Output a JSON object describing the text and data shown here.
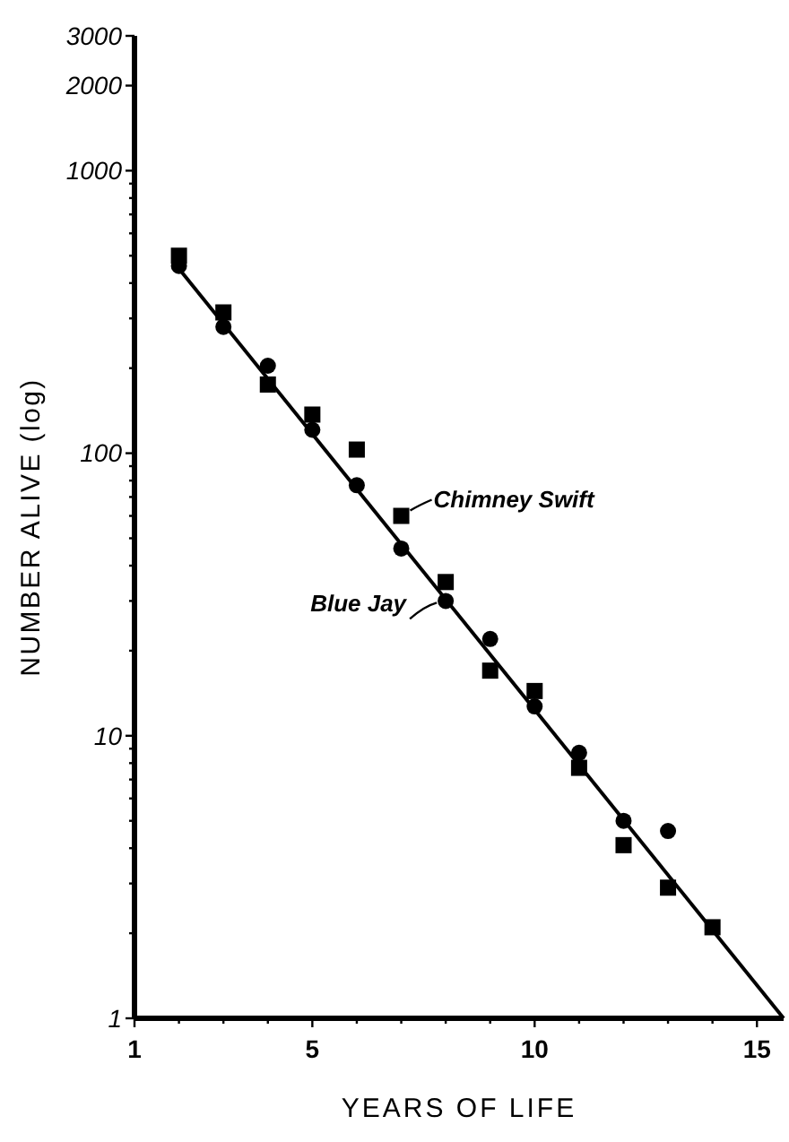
{
  "chart_data": {
    "type": "scatter",
    "xlabel": "YEARS OF LIFE",
    "ylabel": "NUMBER ALIVE (log)",
    "log": "y",
    "x": [
      2,
      3,
      4,
      5,
      6,
      7,
      8,
      9,
      10,
      11,
      12,
      13,
      14
    ],
    "xlim": [
      1,
      15.6
    ],
    "xticks": [
      1,
      {
        "value": 2,
        "label": null
      },
      {
        "value": 3,
        "label": null
      },
      {
        "value": 4,
        "label": null
      },
      5,
      {
        "value": 6,
        "label": null
      },
      {
        "value": 7,
        "label": null
      },
      {
        "value": 8,
        "label": null
      },
      {
        "value": 9,
        "label": null
      },
      10,
      {
        "value": 11,
        "label": null
      },
      {
        "value": 12,
        "label": null
      },
      {
        "value": 13,
        "label": null
      },
      {
        "value": 14,
        "label": null
      },
      15
    ],
    "ylim": [
      1,
      3000
    ],
    "yticks": [
      1,
      {
        "value": 2,
        "label": null
      },
      {
        "value": 3,
        "label": null
      },
      {
        "value": 4,
        "label": null
      },
      {
        "value": 5,
        "label": null
      },
      {
        "value": 6,
        "label": null
      },
      {
        "value": 7,
        "label": null
      },
      {
        "value": 8,
        "label": null
      },
      {
        "value": 9,
        "label": null
      },
      10,
      {
        "value": 20,
        "label": null
      },
      {
        "value": 30,
        "label": null
      },
      {
        "value": 40,
        "label": null
      },
      {
        "value": 50,
        "label": null
      },
      {
        "value": 60,
        "label": null
      },
      {
        "value": 70,
        "label": null
      },
      {
        "value": 80,
        "label": null
      },
      {
        "value": 90,
        "label": null
      },
      100,
      {
        "value": 200,
        "label": null
      },
      {
        "value": 300,
        "label": null
      },
      {
        "value": 400,
        "label": null
      },
      {
        "value": 500,
        "label": null
      },
      {
        "value": 600,
        "label": null
      },
      {
        "value": 700,
        "label": null
      },
      {
        "value": 800,
        "label": null
      },
      {
        "value": 900,
        "label": null
      },
      1000,
      2000,
      3000
    ],
    "grid": false,
    "series": [
      {
        "color": "#000000",
        "marker": "square",
        "values": [
          500,
          315,
          175,
          137,
          103,
          60,
          35,
          17,
          14.4,
          7.7,
          4.1,
          2.9,
          2.1
        ]
      },
      {
        "color": "#000000",
        "marker": "circle",
        "values": [
          460,
          280,
          204,
          121,
          77,
          46,
          30,
          22,
          12.7,
          8.7,
          5.0,
          4.6,
          null
        ]
      },
      {
        "type": "line",
        "color": "#000000",
        "marker": "none",
        "line_style": "solid",
        "x": [
          2,
          15.6
        ],
        "values": [
          450,
          1
        ]
      }
    ],
    "annotations": [
      {
        "text": "Chimney Swift",
        "x": 7,
        "y": 60
      },
      {
        "text": "Blue Jay",
        "x": 8,
        "y": 30
      }
    ]
  }
}
